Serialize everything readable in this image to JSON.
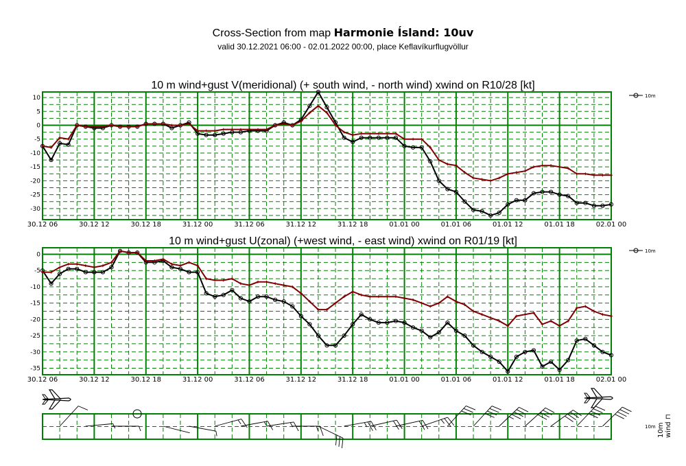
{
  "header": {
    "title_prefix": "Cross-Section from map ",
    "title_bold": "Harmonie Ísland: 10uv",
    "subtitle": "valid 30.12.2021 06:00 - 02.01.2022 00:00, place Keflavíkurflugvöllur"
  },
  "colors": {
    "grid": "#008000",
    "wind": "#000000",
    "gust": "#800000"
  },
  "chart_data": [
    {
      "type": "line",
      "title": "10 m wind+gust V(meridional) (+ south wind, - north wind) xwind on R10/28 [kt]",
      "legend": "10m",
      "ylim": [
        -34,
        12
      ],
      "yticks": [
        10,
        5,
        0,
        -5,
        -10,
        -15,
        -20,
        -25,
        -30
      ],
      "xticks": [
        "30.12 06",
        "30.12 12",
        "30.12 18",
        "31.12 00",
        "31.12 06",
        "31.12 12",
        "31.12 18",
        "01.01 00",
        "01.01 06",
        "01.01 12",
        "01.01 18",
        "02.01 00"
      ],
      "series": [
        {
          "name": "wind",
          "values": [
            -7.5,
            -12.5,
            -6.5,
            -7,
            0,
            -0.5,
            -1,
            -1,
            0,
            -0.5,
            -0.5,
            -0.5,
            0.5,
            0.5,
            0.5,
            -1,
            0,
            1,
            -3,
            -3.5,
            -3.5,
            -3,
            -2.5,
            -2.5,
            -2,
            -2,
            -2,
            0,
            1,
            0,
            2,
            7,
            12,
            6.5,
            1,
            -4.5,
            -6,
            -4.5,
            -4.5,
            -4.5,
            -4.5,
            -4.5,
            -7.5,
            -8,
            -8,
            -13,
            -20,
            -23,
            -24,
            -27.5,
            -30.5,
            -31,
            -32.5,
            -31.5,
            -28.5,
            -27,
            -27,
            -24.5,
            -24,
            -24,
            -25,
            -25.5,
            -28,
            -28,
            -29,
            -29,
            -28.5
          ]
        },
        {
          "name": "gust",
          "values": [
            -7.5,
            -8,
            -4.5,
            -5,
            0,
            -0.5,
            -0.5,
            -0.5,
            0,
            -0.5,
            -0.5,
            -0.5,
            0.5,
            0.5,
            0.5,
            0,
            0,
            0.5,
            -2,
            -2,
            -2,
            -1.5,
            -1.5,
            -1.5,
            -1.5,
            -1.5,
            -1.5,
            0,
            0.5,
            0,
            1.5,
            4.5,
            7,
            4.5,
            0,
            -2.5,
            -3.5,
            -3,
            -3,
            -3,
            -3,
            -3,
            -5,
            -5,
            -5,
            -8,
            -12.5,
            -14,
            -14.5,
            -17,
            -19,
            -19.5,
            -20,
            -19,
            -17.5,
            -17,
            -16.5,
            -15,
            -14.5,
            -14.5,
            -15,
            -15.5,
            -17.5,
            -17.5,
            -18,
            -18,
            -18
          ]
        }
      ]
    },
    {
      "type": "line",
      "title": "10 m wind+gust U(zonal) (+west wind, - east wind) xwind on R01/19 [kt]",
      "legend": "10m",
      "ylim": [
        -37,
        2
      ],
      "yticks": [
        0,
        -5,
        -10,
        -15,
        -20,
        -25,
        -30,
        -35
      ],
      "xticks": [
        "30.12 06",
        "30.12 12",
        "30.12 18",
        "31.12 00",
        "31.12 06",
        "31.12 12",
        "31.12 18",
        "01.01 00",
        "01.01 06",
        "01.01 12",
        "01.01 18",
        "02.01 00"
      ],
      "series": [
        {
          "name": "wind",
          "values": [
            -5,
            -9,
            -6,
            -4.5,
            -4.5,
            -5.5,
            -5.5,
            -5.5,
            -4,
            1,
            0.5,
            0.5,
            -2.5,
            -2.5,
            -2,
            -4,
            -4.5,
            -5.5,
            -5.5,
            -12,
            -13,
            -12.5,
            -11,
            -13.5,
            -14.5,
            -13,
            -13,
            -14,
            -14.5,
            -16,
            -19,
            -21.5,
            -25,
            -28,
            -28,
            -25,
            -21.5,
            -18.5,
            -20,
            -21,
            -21,
            -20.5,
            -21,
            -22.5,
            -23.5,
            -25.5,
            -24,
            -21,
            -23.5,
            -25,
            -28,
            -30,
            -31.5,
            -33,
            -36,
            -31.5,
            -30,
            -29.5,
            -34.5,
            -33,
            -35.5,
            -32.5,
            -26.5,
            -26,
            -28,
            -30,
            -31
          ]
        },
        {
          "name": "gust",
          "values": [
            -5.5,
            -5.5,
            -4,
            -3,
            -3,
            -3.5,
            -4,
            -3.5,
            -2.5,
            1,
            0.5,
            0.5,
            -2,
            -2,
            -1.5,
            -3,
            -3.5,
            -2.5,
            -3.5,
            -7.5,
            -8,
            -8,
            -7.5,
            -9,
            -9.5,
            -8.5,
            -8.5,
            -9,
            -9.5,
            -10,
            -12,
            -14.5,
            -17,
            -17,
            -15,
            -13,
            -11.5,
            -12.5,
            -13,
            -13,
            -13,
            -13,
            -13.5,
            -14,
            -15,
            -16,
            -15,
            -13,
            -14.5,
            -15.5,
            -17.5,
            -18.5,
            -19.5,
            -20.5,
            -22,
            -19,
            -18.5,
            -18,
            -21.5,
            -20.5,
            -22,
            -20.5,
            -16.5,
            -16,
            -17.5,
            -18.5,
            -19
          ]
        }
      ]
    }
  ]
}
